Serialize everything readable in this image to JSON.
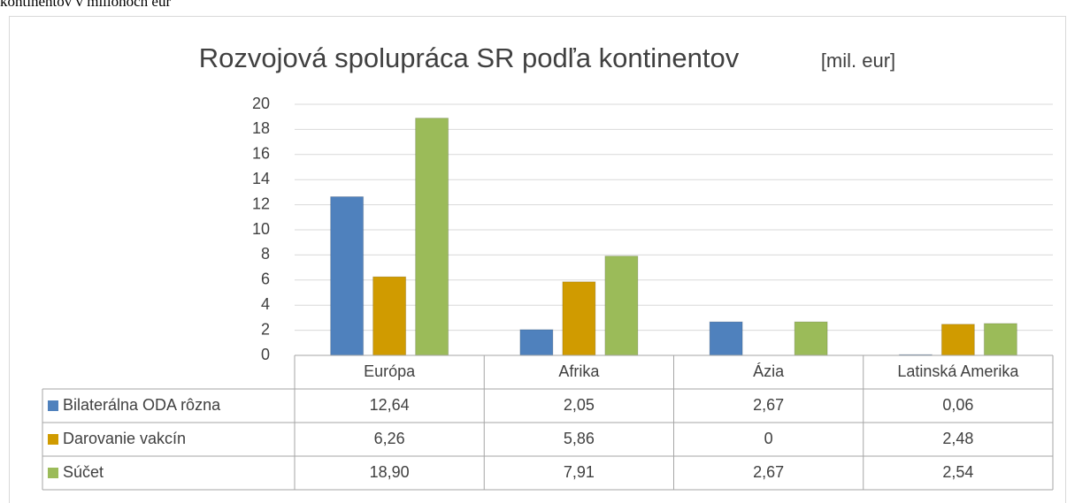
{
  "caption": "kontinentov v miliónoch eur",
  "chart_data": {
    "type": "bar",
    "title": "Rozvojová spolupráca SR podľa kontinentov",
    "subtitle": "[mil. eur]",
    "categories": [
      "Európa",
      "Afrika",
      "Ázia",
      "Latinská Amerika"
    ],
    "series": [
      {
        "name": "Bilaterálna ODA rôzna",
        "color": "#4f81bd",
        "values": [
          12.64,
          2.05,
          2.67,
          0.06
        ],
        "value_labels": [
          "12,64",
          "2,05",
          "2,67",
          "0,06"
        ]
      },
      {
        "name": "Darovanie vakcín",
        "color": "#d09b00",
        "values": [
          6.26,
          5.86,
          0,
          2.48
        ],
        "value_labels": [
          "6,26",
          "5,86",
          "0",
          "2,48"
        ]
      },
      {
        "name": "Súčet",
        "color": "#9bbb59",
        "values": [
          18.9,
          7.91,
          2.67,
          2.54
        ],
        "value_labels": [
          "18,90",
          "7,91",
          "2,67",
          "2,54"
        ]
      }
    ],
    "ylim": [
      0,
      20
    ],
    "yticks": [
      0,
      2,
      4,
      6,
      8,
      10,
      12,
      14,
      16,
      18,
      20
    ],
    "grid": true
  }
}
